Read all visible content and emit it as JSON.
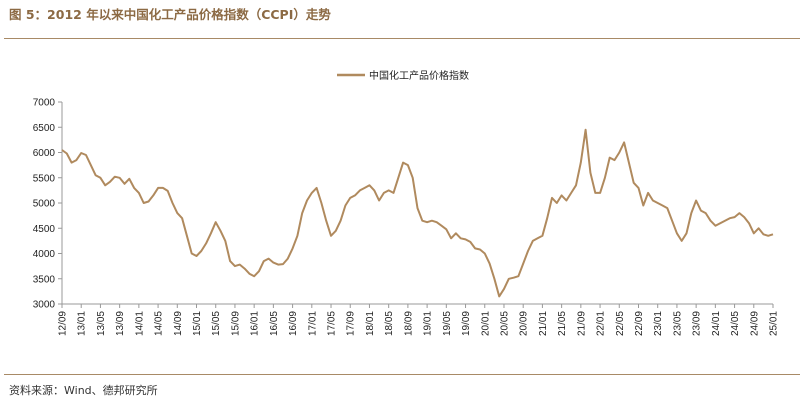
{
  "figure": {
    "title": "图 5：2012 年以来中国化工产品价格指数（CCPI）走势",
    "source": "资料来源：Wind、德邦研究所"
  },
  "colors": {
    "accent": "#8c6a44",
    "series": "#b08a5e",
    "axis": "#999999"
  },
  "chart_data": {
    "type": "line",
    "legend_position": "top-center",
    "grid": false,
    "ylim": [
      3000,
      7000
    ],
    "yticks": [
      3000,
      3500,
      4000,
      4500,
      5000,
      5500,
      6000,
      6500,
      7000
    ],
    "xlabels": [
      "12/09",
      "13/01",
      "13/05",
      "13/09",
      "14/01",
      "14/05",
      "14/09",
      "15/01",
      "15/05",
      "15/09",
      "16/01",
      "16/05",
      "16/09",
      "17/01",
      "17/05",
      "17/09",
      "18/01",
      "18/05",
      "18/09",
      "19/01",
      "19/05",
      "19/09",
      "20/01",
      "20/05",
      "20/09",
      "21/01",
      "21/05",
      "21/09",
      "22/01",
      "22/05",
      "22/09",
      "23/01",
      "23/05",
      "23/09",
      "24/01",
      "24/05",
      "24/09",
      "25/01"
    ],
    "series": [
      {
        "name": "中国化工产品价格指数",
        "points": [
          [
            "12/09",
            6050
          ],
          [
            "12/10",
            5980
          ],
          [
            "12/11",
            5800
          ],
          [
            "12/12",
            5850
          ],
          [
            "13/01",
            5990
          ],
          [
            "13/02",
            5950
          ],
          [
            "13/03",
            5750
          ],
          [
            "13/04",
            5550
          ],
          [
            "13/05",
            5500
          ],
          [
            "13/06",
            5350
          ],
          [
            "13/07",
            5420
          ],
          [
            "13/08",
            5520
          ],
          [
            "13/09",
            5500
          ],
          [
            "13/10",
            5380
          ],
          [
            "13/11",
            5480
          ],
          [
            "13/12",
            5300
          ],
          [
            "14/01",
            5200
          ],
          [
            "14/02",
            5000
          ],
          [
            "14/03",
            5030
          ],
          [
            "14/04",
            5150
          ],
          [
            "14/05",
            5300
          ],
          [
            "14/06",
            5300
          ],
          [
            "14/07",
            5240
          ],
          [
            "14/08",
            5000
          ],
          [
            "14/09",
            4800
          ],
          [
            "14/10",
            4700
          ],
          [
            "14/11",
            4350
          ],
          [
            "14/12",
            4000
          ],
          [
            "15/01",
            3950
          ],
          [
            "15/02",
            4050
          ],
          [
            "15/03",
            4200
          ],
          [
            "15/04",
            4400
          ],
          [
            "15/05",
            4620
          ],
          [
            "15/06",
            4450
          ],
          [
            "15/07",
            4250
          ],
          [
            "15/08",
            3850
          ],
          [
            "15/09",
            3750
          ],
          [
            "15/10",
            3780
          ],
          [
            "15/11",
            3700
          ],
          [
            "15/12",
            3600
          ],
          [
            "16/01",
            3550
          ],
          [
            "16/02",
            3650
          ],
          [
            "16/03",
            3850
          ],
          [
            "16/04",
            3900
          ],
          [
            "16/05",
            3820
          ],
          [
            "16/06",
            3780
          ],
          [
            "16/07",
            3790
          ],
          [
            "16/08",
            3900
          ],
          [
            "16/09",
            4100
          ],
          [
            "16/10",
            4350
          ],
          [
            "16/11",
            4800
          ],
          [
            "16/12",
            5050
          ],
          [
            "17/01",
            5200
          ],
          [
            "17/02",
            5300
          ],
          [
            "17/03",
            5000
          ],
          [
            "17/04",
            4650
          ],
          [
            "17/05",
            4350
          ],
          [
            "17/06",
            4450
          ],
          [
            "17/07",
            4650
          ],
          [
            "17/08",
            4950
          ],
          [
            "17/09",
            5100
          ],
          [
            "17/10",
            5150
          ],
          [
            "17/11",
            5250
          ],
          [
            "17/12",
            5300
          ],
          [
            "18/01",
            5350
          ],
          [
            "18/02",
            5250
          ],
          [
            "18/03",
            5050
          ],
          [
            "18/04",
            5200
          ],
          [
            "18/05",
            5250
          ],
          [
            "18/06",
            5200
          ],
          [
            "18/07",
            5500
          ],
          [
            "18/08",
            5800
          ],
          [
            "18/09",
            5750
          ],
          [
            "18/10",
            5500
          ],
          [
            "18/11",
            4900
          ],
          [
            "18/12",
            4650
          ],
          [
            "19/01",
            4620
          ],
          [
            "19/02",
            4650
          ],
          [
            "19/03",
            4620
          ],
          [
            "19/04",
            4550
          ],
          [
            "19/05",
            4480
          ],
          [
            "19/06",
            4300
          ],
          [
            "19/07",
            4400
          ],
          [
            "19/08",
            4300
          ],
          [
            "19/09",
            4280
          ],
          [
            "19/10",
            4230
          ],
          [
            "19/11",
            4100
          ],
          [
            "19/12",
            4080
          ],
          [
            "20/01",
            4000
          ],
          [
            "20/02",
            3800
          ],
          [
            "20/03",
            3500
          ],
          [
            "20/04",
            3150
          ],
          [
            "20/05",
            3300
          ],
          [
            "20/06",
            3500
          ],
          [
            "20/07",
            3520
          ],
          [
            "20/08",
            3550
          ],
          [
            "20/09",
            3800
          ],
          [
            "20/10",
            4050
          ],
          [
            "20/11",
            4250
          ],
          [
            "20/12",
            4300
          ],
          [
            "21/01",
            4350
          ],
          [
            "21/02",
            4700
          ],
          [
            "21/03",
            5100
          ],
          [
            "21/04",
            5000
          ],
          [
            "21/05",
            5150
          ],
          [
            "21/06",
            5050
          ],
          [
            "21/07",
            5200
          ],
          [
            "21/08",
            5350
          ],
          [
            "21/09",
            5800
          ],
          [
            "21/10",
            6450
          ],
          [
            "21/11",
            5600
          ],
          [
            "21/12",
            5200
          ],
          [
            "22/01",
            5200
          ],
          [
            "22/02",
            5500
          ],
          [
            "22/03",
            5900
          ],
          [
            "22/04",
            5850
          ],
          [
            "22/05",
            6000
          ],
          [
            "22/06",
            6200
          ],
          [
            "22/07",
            5800
          ],
          [
            "22/08",
            5400
          ],
          [
            "22/09",
            5300
          ],
          [
            "22/10",
            4950
          ],
          [
            "22/11",
            5200
          ],
          [
            "22/12",
            5050
          ],
          [
            "23/01",
            5000
          ],
          [
            "23/02",
            4950
          ],
          [
            "23/03",
            4900
          ],
          [
            "23/04",
            4650
          ],
          [
            "23/05",
            4400
          ],
          [
            "23/06",
            4250
          ],
          [
            "23/07",
            4400
          ],
          [
            "23/08",
            4800
          ],
          [
            "23/09",
            5050
          ],
          [
            "23/10",
            4850
          ],
          [
            "23/11",
            4800
          ],
          [
            "23/12",
            4650
          ],
          [
            "24/01",
            4550
          ],
          [
            "24/02",
            4600
          ],
          [
            "24/03",
            4650
          ],
          [
            "24/04",
            4700
          ],
          [
            "24/05",
            4720
          ],
          [
            "24/06",
            4800
          ],
          [
            "24/07",
            4720
          ],
          [
            "24/08",
            4600
          ],
          [
            "24/09",
            4400
          ],
          [
            "24/10",
            4500
          ],
          [
            "24/11",
            4380
          ],
          [
            "24/12",
            4350
          ],
          [
            "25/01",
            4380
          ]
        ]
      }
    ]
  }
}
